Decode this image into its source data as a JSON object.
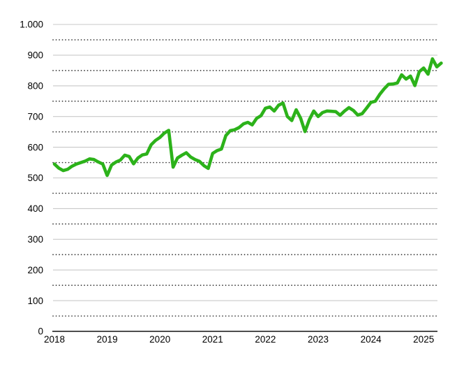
{
  "page": {
    "background_color": "#ffffff"
  },
  "chart_data": {
    "type": "line",
    "title": "",
    "xlabel": "",
    "ylabel": "",
    "frequency": "monthly",
    "x_start_year": 2018,
    "x_end_label": "2025-05",
    "ylim": [
      0,
      1000
    ],
    "y_major_step": 100,
    "y_minor_step": 50,
    "grid": "solid light lines at 100s, dotted dark lines at 50s, dark baseline at 0",
    "legend_position": "none",
    "y_tick_labels": [
      "0",
      "100",
      "200",
      "300",
      "400",
      "500",
      "600",
      "700",
      "800",
      "900",
      "1.000"
    ],
    "x_tick_labels": [
      "2018",
      "2019",
      "2020",
      "2021",
      "2022",
      "2023",
      "2024",
      "2025"
    ],
    "colors": {
      "line": "#2cb21a",
      "major_grid": "#c9c9c9",
      "minor_grid_dots": "#333333",
      "zero_axis": "#4d4d4d",
      "tick_text": "#000000",
      "background": "#ffffff"
    },
    "series": [
      {
        "name": "value",
        "values": [
          545,
          532,
          524,
          528,
          538,
          545,
          550,
          555,
          562,
          560,
          552,
          545,
          508,
          542,
          552,
          558,
          574,
          570,
          546,
          565,
          575,
          578,
          608,
          622,
          632,
          646,
          655,
          535,
          565,
          574,
          582,
          568,
          560,
          554,
          540,
          531,
          580,
          589,
          594,
          638,
          654,
          657,
          664,
          676,
          681,
          673,
          694,
          703,
          727,
          731,
          718,
          737,
          744,
          700,
          687,
          722,
          695,
          651,
          690,
          718,
          700,
          713,
          718,
          717,
          716,
          704,
          718,
          729,
          720,
          705,
          709,
          727,
          746,
          750,
          772,
          790,
          805,
          806,
          809,
          836,
          822,
          832,
          801,
          846,
          858,
          838,
          888,
          862,
          874
        ]
      }
    ]
  }
}
